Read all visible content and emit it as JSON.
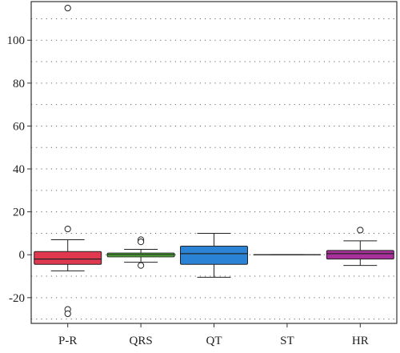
{
  "chart_data": {
    "type": "boxplot",
    "title": "",
    "xlabel": "",
    "ylabel": "",
    "ylim": [
      -32,
      118
    ],
    "y_ticks": [
      -20,
      0,
      20,
      40,
      60,
      80,
      100
    ],
    "y_tick_labels": [
      "-20",
      "0",
      "20",
      "40",
      "60",
      "80",
      "100"
    ],
    "grid": "dotted horizontal",
    "categories": [
      "P-R",
      "QRS",
      "QT",
      "ST",
      "HR"
    ],
    "boxes": [
      {
        "label": "P-R",
        "color": "#e0384f",
        "whisker_low": -7.5,
        "q1": -4.5,
        "median": -2.0,
        "q3": 1.5,
        "whisker_high": 7.0,
        "outliers": [
          115,
          12,
          -25.5,
          -27.5
        ]
      },
      {
        "label": "QRS",
        "color": "#55c23a",
        "whisker_low": -3.5,
        "q1": -1.0,
        "median": 0.0,
        "q3": 0.8,
        "whisker_high": 2.5,
        "outliers": [
          7,
          6,
          -5
        ]
      },
      {
        "label": "QT",
        "color": "#2b83d6",
        "whisker_low": -10.5,
        "q1": -4.5,
        "median": 0.5,
        "q3": 4.0,
        "whisker_high": 10.0,
        "outliers": []
      },
      {
        "label": "ST",
        "color": "#888888",
        "whisker_low": 0.0,
        "q1": 0.0,
        "median": 0.0,
        "q3": 0.0,
        "whisker_high": 0.0,
        "outliers": []
      },
      {
        "label": "HR",
        "color": "#a8309a",
        "whisker_low": -5.0,
        "q1": -2.0,
        "median": 0.5,
        "q3": 2.0,
        "whisker_high": 6.5,
        "outliers": [
          11.5
        ]
      }
    ]
  }
}
